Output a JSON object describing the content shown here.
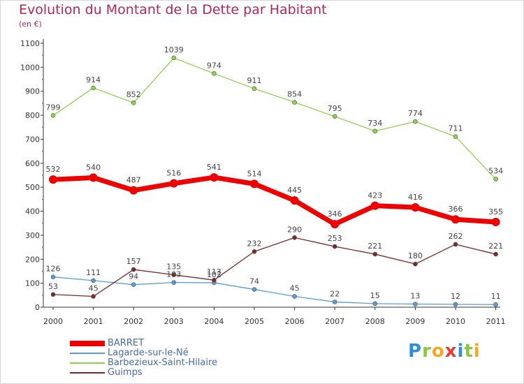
{
  "header": {
    "title": "Evolution du Montant de la Dette par Habitant",
    "subtitle": "(en €)"
  },
  "logo": {
    "text": "Proxiti",
    "letters": [
      {
        "ch": "P",
        "color": "#2f8fd6"
      },
      {
        "ch": "r",
        "color": "#8cc63f"
      },
      {
        "ch": "o",
        "color": "#f7a823"
      },
      {
        "ch": "x",
        "color": "#e8393a"
      },
      {
        "ch": "i",
        "color": "#2f8fd6"
      },
      {
        "ch": "t",
        "color": "#8cc63f"
      },
      {
        "ch": "i",
        "color": "#f7a823"
      }
    ]
  },
  "chart_data": {
    "type": "line",
    "title": "Evolution du Montant de la Dette par Habitant",
    "subtitle": "(en €)",
    "x": [
      "2000",
      "2001",
      "2002",
      "2003",
      "2004",
      "2005",
      "2006",
      "2007",
      "2008",
      "2009",
      "2010",
      "2011"
    ],
    "ylim": [
      0,
      1100
    ],
    "yticks": [
      0,
      100,
      200,
      300,
      400,
      500,
      600,
      700,
      800,
      900,
      1000,
      1100
    ],
    "grid": false,
    "legend_position": "bottom-left",
    "series": [
      {
        "name": "BARRET",
        "color": "#ee0000",
        "values": [
          532,
          540,
          487,
          516,
          541,
          514,
          445,
          346,
          423,
          416,
          366,
          355
        ]
      },
      {
        "name": "Lagarde-sur-le-Né",
        "color": "#5b9bd5",
        "values": [
          126,
          111,
          94,
          103,
          102,
          74,
          45,
          22,
          15,
          13,
          12,
          11
        ]
      },
      {
        "name": "Barbezieux-Saint-Hilaire",
        "color": "#8fd14f",
        "values": [
          799,
          914,
          852,
          1039,
          974,
          911,
          854,
          795,
          734,
          774,
          711,
          534
        ]
      },
      {
        "name": "Guimps",
        "color": "#7a2a2a",
        "values": [
          53,
          45,
          157,
          135,
          113,
          232,
          290,
          253,
          221,
          180,
          262,
          221
        ]
      }
    ]
  }
}
